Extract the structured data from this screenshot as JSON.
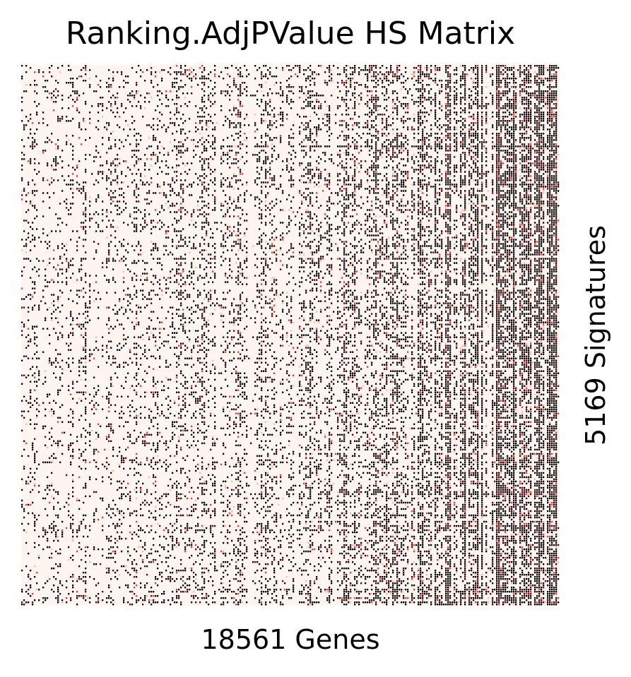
{
  "chart_data": {
    "type": "heatmap",
    "title": "Ranking.AdjPValue HS Matrix",
    "xlabel": "18561 Genes",
    "ylabel": "5169 Signatures",
    "n_columns": 18561,
    "n_rows": 5169,
    "colormap": [
      "#fff5f0",
      "#fcbba1",
      "#ef3b2c",
      "#67000d",
      "#000000"
    ],
    "value_note": "cells are mostly low (light) with dense dark columns increasing toward the right edge",
    "column_density_profile": [
      {
        "x_frac": 0.0,
        "dark_fraction": 0.12
      },
      {
        "x_frac": 0.25,
        "dark_fraction": 0.16
      },
      {
        "x_frac": 0.5,
        "dark_fraction": 0.22
      },
      {
        "x_frac": 0.75,
        "dark_fraction": 0.32
      },
      {
        "x_frac": 0.9,
        "dark_fraction": 0.55
      },
      {
        "x_frac": 1.0,
        "dark_fraction": 0.75
      }
    ],
    "grid": false,
    "legend": "none"
  }
}
